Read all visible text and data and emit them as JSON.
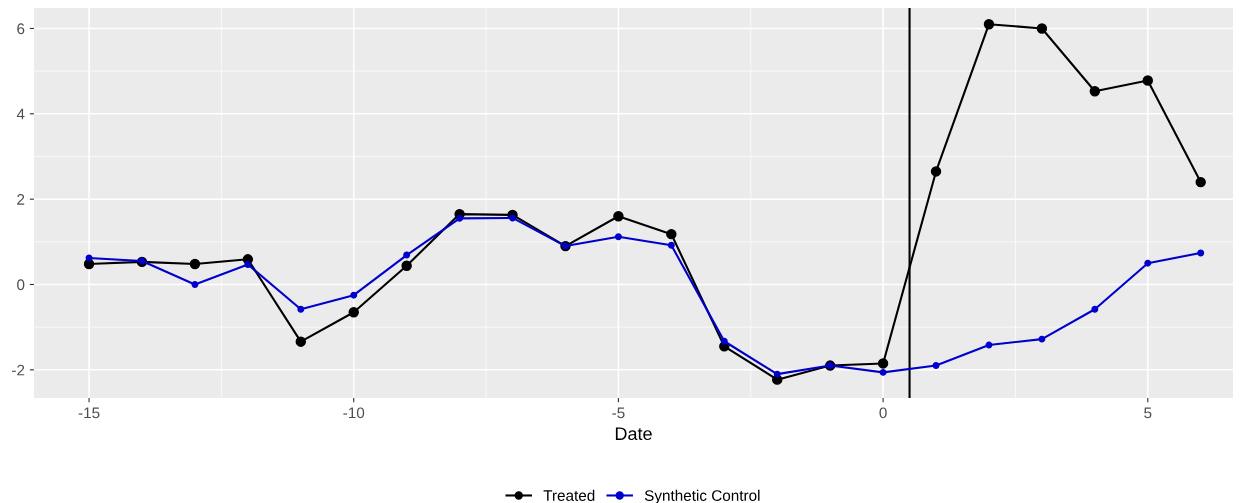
{
  "chart_data": {
    "type": "line",
    "xlabel": "Date",
    "x": [
      -15,
      -14,
      -13,
      -12,
      -11,
      -10,
      -9,
      -8,
      -7,
      -6,
      -5,
      -4,
      -3,
      -2,
      -1,
      0,
      1,
      2,
      3,
      4,
      5,
      6
    ],
    "series": [
      {
        "name": "Treated",
        "color": "#000000",
        "values": [
          0.48,
          0.53,
          0.48,
          0.59,
          -1.34,
          -0.65,
          0.44,
          1.65,
          1.63,
          0.9,
          1.6,
          1.18,
          -1.45,
          -2.23,
          -1.9,
          -1.85,
          2.65,
          6.1,
          6.0,
          4.53,
          4.78,
          2.4
        ]
      },
      {
        "name": "Synthetic Control",
        "color": "#0000cd",
        "values": [
          0.62,
          0.55,
          0.0,
          0.47,
          -0.58,
          -0.25,
          0.69,
          1.55,
          1.56,
          0.9,
          1.12,
          0.92,
          -1.33,
          -2.1,
          -1.9,
          -2.06,
          -1.9,
          -1.42,
          -1.28,
          -0.58,
          0.5,
          0.74
        ]
      }
    ],
    "xlim": [
      -16.04,
      6.61
    ],
    "ylim": [
      -2.66,
      6.48
    ],
    "xticks": [
      -15,
      -10,
      -5,
      0,
      5
    ],
    "yticks": [
      -2,
      0,
      2,
      4,
      6
    ],
    "ref_lines": [
      {
        "axis": "x",
        "value": 0.5,
        "color": "#000000"
      }
    ],
    "grid": true,
    "legend": "bottom",
    "marker": "circle",
    "line_style": "solid"
  }
}
